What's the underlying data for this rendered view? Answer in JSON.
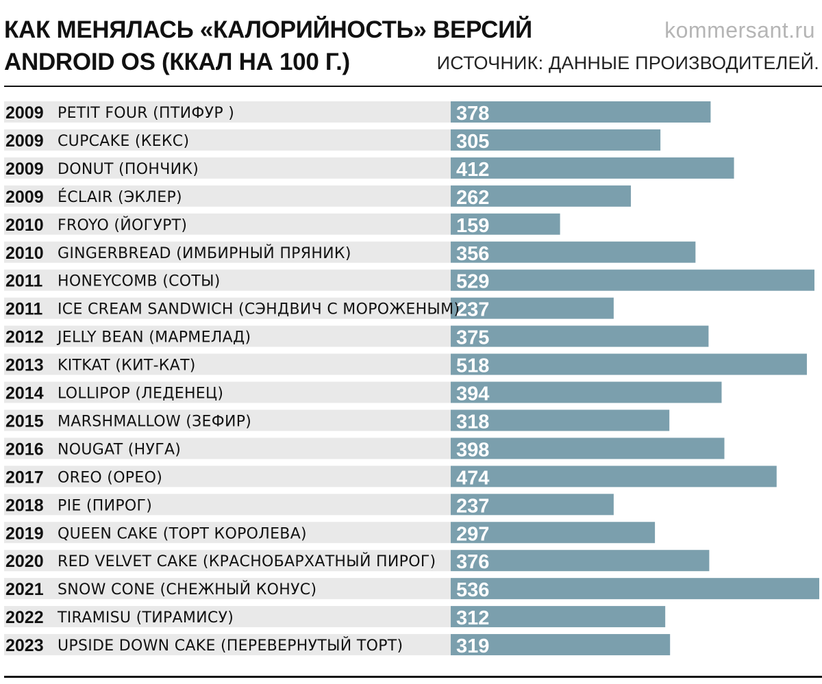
{
  "header": {
    "title_line1": "КАК МЕНЯЛАСЬ «КАЛОРИЙНОСТЬ» ВЕРСИЙ",
    "title_line2": "ANDROID OS (ККАЛ НА 100 Г.)",
    "brand": "kommersant.ru",
    "source": "ИСТОЧНИК: ДАННЫЕ ПРОИЗВОДИТЕЛЕЙ."
  },
  "colors": {
    "bar": "#7b9fad",
    "row_background": "#e9e9e9",
    "text": "#111111",
    "brand": "#b5b5b5"
  },
  "chart_data": {
    "type": "bar",
    "orientation": "horizontal",
    "title": "КАК МЕНЯЛАСЬ «КАЛОРИЙНОСТЬ» ВЕРСИЙ ANDROID OS (ККАЛ НА 100 Г.)",
    "unit": "ккал на 100 г.",
    "xlim": [
      0,
      536
    ],
    "years": [
      "2009",
      "2009",
      "2009",
      "2009",
      "2010",
      "2010",
      "2011",
      "2011",
      "2012",
      "2013",
      "2014",
      "2015",
      "2016",
      "2017",
      "2018",
      "2019",
      "2020",
      "2021",
      "2022",
      "2023"
    ],
    "categories": [
      "PETIT FOUR (ПТИФУР )",
      "CUPCAKE (КЕКС)",
      "DONUT (ПОНЧИК)",
      "ÉCLAIR (ЭКЛЕР)",
      "FROYO (ЙОГУРТ)",
      "GINGERBREAD (ИМБИРНЫЙ ПРЯНИК)",
      "HONEYCOMB (СОТЫ)",
      "ICE CREAM SANDWICH (СЭНДВИЧ С МОРОЖЕНЫМ)",
      "JELLY BEAN (МАРМЕЛАД)",
      "KITKAT (КИТ-КАТ)",
      "LOLLIPOP (ЛЕДЕНЕЦ)",
      "MARSHMALLOW (ЗЕФИР)",
      "NOUGAT (НУГА)",
      "OREO (ОРЕО)",
      "PIE (ПИРОГ)",
      "QUEEN CAKE (ТОРТ КОРОЛЕВА)",
      "RED VELVET CAKE (КРАСНОБАРХАТНЫЙ ПИРОГ)",
      "SNOW CONE (СНЕЖНЫЙ КОНУС)",
      "TIRAMISU (ТИРАМИСУ)",
      "UPSIDE DOWN CAKE (ПЕРЕВЕРНУТЫЙ ТОРТ)"
    ],
    "values": [
      378,
      305,
      412,
      262,
      159,
      356,
      529,
      237,
      375,
      518,
      394,
      318,
      398,
      474,
      237,
      297,
      376,
      536,
      312,
      319
    ]
  }
}
